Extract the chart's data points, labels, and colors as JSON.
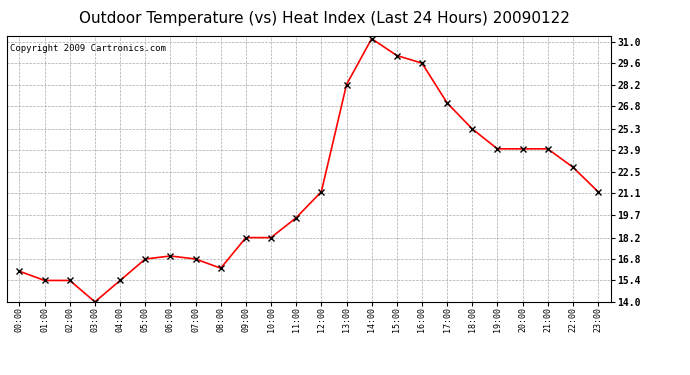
{
  "title": "Outdoor Temperature (vs) Heat Index (Last 24 Hours) 20090122",
  "copyright": "Copyright 2009 Cartronics.com",
  "x_labels": [
    "00:00",
    "01:00",
    "02:00",
    "03:00",
    "04:00",
    "05:00",
    "06:00",
    "07:00",
    "08:00",
    "09:00",
    "10:00",
    "11:00",
    "12:00",
    "13:00",
    "14:00",
    "15:00",
    "16:00",
    "17:00",
    "18:00",
    "19:00",
    "20:00",
    "21:00",
    "22:00",
    "23:00"
  ],
  "y_values": [
    16.0,
    15.4,
    15.4,
    14.0,
    15.4,
    16.8,
    17.0,
    16.8,
    16.2,
    18.2,
    18.2,
    19.5,
    21.2,
    28.2,
    31.2,
    30.1,
    29.6,
    27.0,
    25.3,
    24.0,
    24.0,
    24.0,
    22.8,
    21.2
  ],
  "line_color": "#FF0000",
  "marker_color": "#000000",
  "marker_size": 4,
  "ylim": [
    14.0,
    31.4
  ],
  "yticks": [
    14.0,
    15.4,
    16.8,
    18.2,
    19.7,
    21.1,
    22.5,
    23.9,
    25.3,
    26.8,
    28.2,
    29.6,
    31.0
  ],
  "ytick_labels": [
    "14.0",
    "15.4",
    "16.8",
    "18.2",
    "19.7",
    "21.1",
    "22.5",
    "23.9",
    "25.3",
    "26.8",
    "28.2",
    "29.6",
    "31.0"
  ],
  "background_color": "#FFFFFF",
  "grid_color": "#AAAAAA",
  "title_fontsize": 11,
  "copyright_fontsize": 6.5
}
